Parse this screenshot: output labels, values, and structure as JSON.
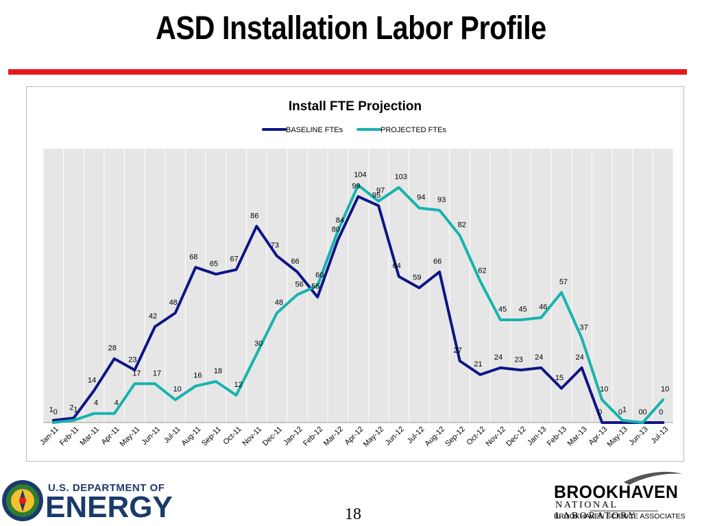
{
  "slide": {
    "title": "ASD Installation Labor Profile",
    "page_number": "18",
    "red_rule_color": "#e8191c"
  },
  "footer": {
    "doe": {
      "line1": "U.S. DEPARTMENT OF",
      "line2": "ENERGY",
      "color": "#1b3a6b",
      "seal_icon": "doe-seal-icon"
    },
    "bnl": {
      "name": "BROOKHAVEN",
      "lab": "NATIONAL LABORATORY",
      "associates": "BROOKHAVEN SCIENCE ASSOCIATES",
      "swoosh_icon": "bnl-swoosh-icon"
    }
  },
  "chart_data": {
    "type": "line",
    "title": "Install FTE Projection",
    "xlabel": "",
    "ylabel": "",
    "ylim": [
      0,
      120
    ],
    "grid": "vertical",
    "legend_position": "top",
    "categories": [
      "Jan-11",
      "Feb-11",
      "Mar-11",
      "Apr-11",
      "May-11",
      "Jun-11",
      "Jul-11",
      "Aug-11",
      "Sep-11",
      "Oct-11",
      "Nov-11",
      "Dec-11",
      "Jan-12",
      "Feb-12",
      "Mar-12",
      "Apr-12",
      "May-12",
      "Jun-12",
      "Jul-12",
      "Aug-12",
      "Sep-12",
      "Oct-12",
      "Nov-12",
      "Dec-12",
      "Jan-13",
      "Feb-13",
      "Mar-13",
      "Apr-13",
      "May-13",
      "Jun-13",
      "Jul-13"
    ],
    "series": [
      {
        "name": "BASELINE FTEs",
        "color": "#0d1585",
        "values": [
          1,
          2,
          14,
          28,
          23,
          42,
          48,
          68,
          65,
          67,
          86,
          73,
          66,
          55,
          80,
          99,
          95,
          64,
          59,
          66,
          27,
          21,
          24,
          23,
          24,
          15,
          24,
          0,
          0,
          0,
          0
        ]
      },
      {
        "name": "PROJECTED FTEs",
        "color": "#16b3ad",
        "values": [
          0,
          1,
          4,
          4,
          17,
          17,
          10,
          16,
          18,
          12,
          30,
          48,
          56,
          60,
          84,
          104,
          97,
          103,
          94,
          93,
          82,
          62,
          45,
          45,
          46,
          57,
          37,
          10,
          1,
          0,
          10
        ]
      }
    ]
  }
}
